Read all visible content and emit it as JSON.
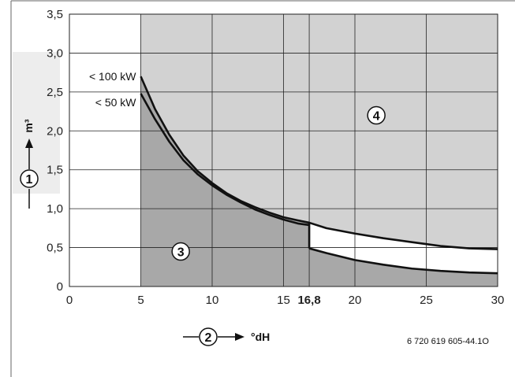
{
  "chart_data": {
    "type": "line",
    "title": "",
    "x": {
      "min": 0,
      "max": 30
    },
    "y": {
      "min": 0,
      "max": 3.5
    },
    "x_ticks": [
      {
        "value": 0,
        "label": "0"
      },
      {
        "value": 5,
        "label": "5"
      },
      {
        "value": 10,
        "label": "10"
      },
      {
        "value": 15,
        "label": "15"
      },
      {
        "value": 16.8,
        "label": "16,8",
        "bold": true
      },
      {
        "value": 20,
        "label": "20"
      },
      {
        "value": 25,
        "label": "25"
      },
      {
        "value": 30,
        "label": "30"
      }
    ],
    "y_ticks": [
      {
        "value": 0,
        "label": "0"
      },
      {
        "value": 0.5,
        "label": "0,5"
      },
      {
        "value": 1.0,
        "label": "1,0"
      },
      {
        "value": 1.5,
        "label": "1,5"
      },
      {
        "value": 2.0,
        "label": "2,0"
      },
      {
        "value": 2.5,
        "label": "2,5"
      },
      {
        "value": 3.0,
        "label": "3,0"
      },
      {
        "value": 3.5,
        "label": "3,5"
      }
    ],
    "grid": true,
    "shaded_region_x_start": 5,
    "series": [
      {
        "name": "< 100 kW",
        "points": [
          [
            5,
            2.7
          ],
          [
            6,
            2.28
          ],
          [
            7,
            1.95
          ],
          [
            8,
            1.68
          ],
          [
            9,
            1.48
          ],
          [
            10,
            1.33
          ],
          [
            11,
            1.2
          ],
          [
            12,
            1.1
          ],
          [
            13,
            1.02
          ],
          [
            14,
            0.95
          ],
          [
            15,
            0.89
          ],
          [
            16,
            0.85
          ],
          [
            16.8,
            0.82
          ],
          [
            18,
            0.75
          ],
          [
            20,
            0.68
          ],
          [
            22,
            0.62
          ],
          [
            24,
            0.57
          ],
          [
            26,
            0.52
          ],
          [
            28,
            0.49
          ],
          [
            30,
            0.48
          ]
        ]
      },
      {
        "name": "< 50 kW",
        "points": [
          [
            5,
            2.48
          ],
          [
            6,
            2.15
          ],
          [
            7,
            1.86
          ],
          [
            8,
            1.62
          ],
          [
            9,
            1.44
          ],
          [
            10,
            1.3
          ],
          [
            11,
            1.18
          ],
          [
            12,
            1.08
          ],
          [
            13,
            0.99
          ],
          [
            14,
            0.92
          ],
          [
            15,
            0.86
          ],
          [
            16,
            0.81
          ],
          [
            16.8,
            0.79
          ]
        ]
      },
      {
        "name": "",
        "points": [
          [
            16.8,
            0.49
          ],
          [
            18,
            0.43
          ],
          [
            20,
            0.34
          ],
          [
            22,
            0.28
          ],
          [
            24,
            0.23
          ],
          [
            26,
            0.2
          ],
          [
            28,
            0.18
          ],
          [
            30,
            0.17
          ]
        ]
      }
    ],
    "zone_labels": [
      {
        "label": "3",
        "x": 7.8,
        "y": 0.45
      },
      {
        "label": "4",
        "x": 21.5,
        "y": 2.2
      }
    ],
    "y_axis_badge": "1",
    "y_axis_unit": "m³",
    "x_axis_badge": "2",
    "x_axis_unit": "°dH",
    "figure_id": "6 720 619 605-44.1O"
  }
}
